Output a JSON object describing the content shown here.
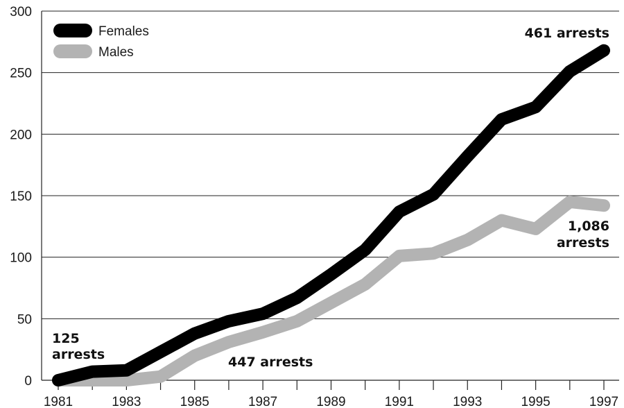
{
  "chart_data": {
    "type": "line",
    "x": [
      1981,
      1982,
      1983,
      1984,
      1985,
      1986,
      1987,
      1988,
      1989,
      1990,
      1991,
      1992,
      1993,
      1994,
      1995,
      1996,
      1997
    ],
    "xticks": [
      "1981",
      "1983",
      "1985",
      "1987",
      "1989",
      "1991",
      "1993",
      "1995",
      "1997"
    ],
    "yticks": [
      "0",
      "50",
      "100",
      "150",
      "200",
      "250",
      "300"
    ],
    "ylim": [
      0,
      300
    ],
    "xlim": [
      1981,
      1997
    ],
    "grid": "horizontal",
    "legend_position": "top-left",
    "series": [
      {
        "name": "Females",
        "color": "#000000",
        "values": [
          0,
          7,
          8,
          23,
          38,
          48,
          54,
          67,
          86,
          106,
          137,
          151,
          182,
          212,
          222,
          251,
          268
        ]
      },
      {
        "name": "Males",
        "color": "#b3b3b3",
        "values": [
          0,
          0,
          0,
          3,
          20,
          31,
          39,
          48,
          63,
          78,
          101,
          103,
          114,
          130,
          123,
          145,
          142
        ]
      }
    ],
    "annotations": [
      {
        "line1": "461 arrests",
        "line2": ""
      },
      {
        "line1": "1,086",
        "line2": "arrests"
      },
      {
        "line1": "125",
        "line2": "arrests"
      },
      {
        "line1": "447 arrests",
        "line2": ""
      }
    ]
  }
}
